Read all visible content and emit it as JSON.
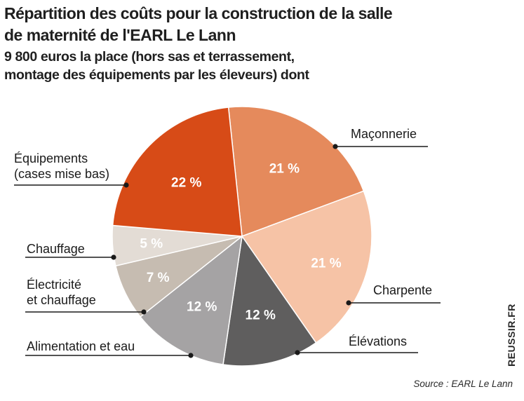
{
  "header": {
    "title_line1": "Répartition des coûts pour la construction de la salle",
    "title_line2": "de maternité de l'EARL Le Lann",
    "subtitle_line1": "9 800 euros la place (hors sas et terrassement,",
    "subtitle_line2": "montage des équipements par les éleveurs) dont"
  },
  "chart_data": {
    "type": "pie",
    "unit": "%",
    "slices": [
      {
        "label": "Maçonnerie",
        "value": 21,
        "value_label": "21 %",
        "color": "#e58a5c"
      },
      {
        "label": "Charpente",
        "value": 21,
        "value_label": "21 %",
        "color": "#f6c3a6"
      },
      {
        "label": "Élévations",
        "value": 12,
        "value_label": "12 %",
        "color": "#5f5e5e"
      },
      {
        "label": "Alimentation et eau",
        "value": 12,
        "value_label": "12 %",
        "color": "#a5a3a4"
      },
      {
        "label": "Électricité et chauffage",
        "label_lines": [
          "Électricité",
          "et chauffage"
        ],
        "value": 7,
        "value_label": "7 %",
        "color": "#c6bcb1"
      },
      {
        "label": "Chauffage",
        "value": 5,
        "value_label": "5 %",
        "color": "#e3dcd5"
      },
      {
        "label": "Équipements (cases mise bas)",
        "label_lines": [
          "Équipements",
          "(cases mise bas)"
        ],
        "value": 22,
        "value_label": "22 %",
        "color": "#d74b17"
      }
    ]
  },
  "footer": {
    "source": "Source : EARL Le Lann",
    "watermark": "REUSSIR.FR"
  }
}
